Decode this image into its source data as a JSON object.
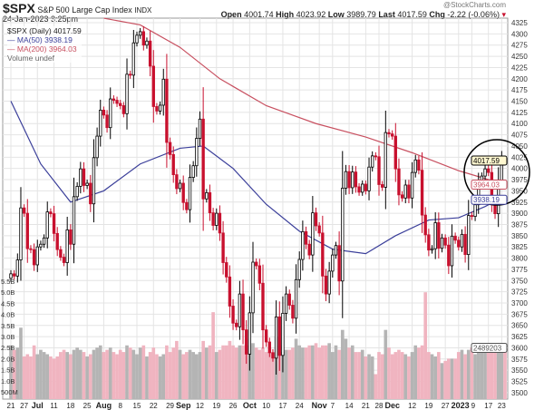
{
  "header": {
    "symbol": "$SPX",
    "name": "S&P 500 Large Cap Index",
    "exchange": "INDX",
    "datetime": "24-Jan-2023 3:25pm",
    "watermark": "@StockCharts.com",
    "open_label": "Open",
    "open": "4001.74",
    "high_label": "High",
    "high": "4023.92",
    "low_label": "Low",
    "low": "3989.79",
    "last_label": "Last",
    "last": "4017.59",
    "chg_label": "Chg",
    "chg": "-2.22 (-0.06%)"
  },
  "legend": {
    "price": "$SPX (Daily) 4017.59",
    "ma50": "MA(50) 3938.19",
    "ma200": "MA(200) 3964.03",
    "volume": "Volume undef"
  },
  "colors": {
    "up": "#000000",
    "down": "#c8102e",
    "ma50": "#3b3f9a",
    "ma200": "#c85060",
    "vol_up": "#b4b4b4",
    "vol_down": "#f0b4c0",
    "grid": "#e4e4e4"
  },
  "chart_data": {
    "type": "candlestick",
    "ylim": [
      3487,
      4340
    ],
    "yticks": [
      4325,
      4300,
      4275,
      4250,
      4225,
      4200,
      4175,
      4150,
      4125,
      4100,
      4075,
      4050,
      4025,
      4000,
      3975,
      3950,
      3925,
      3900,
      3875,
      3850,
      3825,
      3800,
      3775,
      3750,
      3725,
      3700,
      3675,
      3650,
      3625,
      3600,
      3575,
      3550,
      3525,
      3500
    ],
    "vol_ticks": [
      "5.5B",
      "5.0B",
      "4.5B",
      "4.0B",
      "3.5B",
      "3.0B",
      "2.5B",
      "2.0B",
      "1.5B",
      "1.0B",
      "500M"
    ],
    "months": [
      {
        "m": "2022-06",
        "days": [
          21,
          22,
          23,
          24,
          27,
          28,
          29,
          30
        ],
        "close": [
          3765,
          3760,
          3796,
          3912,
          3900,
          3821,
          3819,
          3785
        ],
        "vol": [
          2.6,
          2.4,
          2.5,
          3.4,
          2.1,
          2.2,
          2.1,
          2.6
        ]
      },
      {
        "m": "2022-07",
        "days": [
          1,
          5,
          6,
          7,
          8,
          11,
          12,
          13,
          14,
          15,
          18,
          19,
          20,
          21,
          22,
          25,
          26,
          27,
          28,
          29
        ],
        "close": [
          3825,
          3831,
          3845,
          3903,
          3899,
          3855,
          3819,
          3802,
          3790,
          3863,
          3831,
          3937,
          3960,
          3999,
          3962,
          3967,
          3921,
          4024,
          4072,
          4130
        ],
        "vol": [
          2.2,
          2.4,
          2.3,
          2.2,
          2.1,
          2.0,
          2.1,
          2.3,
          2.4,
          2.3,
          2.2,
          2.4,
          2.5,
          2.4,
          2.3,
          2.1,
          2.2,
          2.4,
          2.5,
          2.6
        ]
      },
      {
        "m": "2022-08",
        "days": [
          1,
          2,
          3,
          4,
          5,
          8,
          9,
          10,
          11,
          12,
          15,
          16,
          17,
          18,
          19,
          22,
          23,
          24,
          25,
          26,
          29,
          30,
          31
        ],
        "close": [
          4119,
          4091,
          4155,
          4152,
          4145,
          4140,
          4122,
          4210,
          4208,
          4280,
          4297,
          4305,
          4275,
          4284,
          4228,
          4138,
          4128,
          4141,
          4199,
          4058,
          4031,
          3986,
          3955
        ],
        "vol": [
          2.3,
          2.4,
          2.5,
          2.3,
          2.2,
          2.4,
          2.3,
          2.6,
          2.5,
          2.4,
          2.2,
          2.5,
          2.6,
          2.1,
          2.3,
          2.5,
          2.2,
          2.1,
          2.2,
          2.6,
          2.3,
          2.5,
          2.8
        ]
      },
      {
        "m": "2022-09",
        "days": [
          1,
          2,
          6,
          7,
          8,
          9,
          12,
          13,
          14,
          15,
          16,
          19,
          20,
          21,
          22,
          23,
          26,
          27,
          28,
          29,
          30
        ],
        "close": [
          3967,
          3924,
          3908,
          3980,
          4006,
          4067,
          4110,
          3932,
          3946,
          3901,
          3873,
          3900,
          3856,
          3790,
          3758,
          3693,
          3655,
          3647,
          3720,
          3640,
          3586
        ],
        "vol": [
          2.4,
          2.2,
          2.3,
          2.4,
          2.3,
          2.2,
          2.3,
          2.8,
          2.5,
          2.6,
          4.1,
          2.3,
          2.4,
          2.6,
          2.6,
          2.8,
          2.6,
          2.5,
          2.6,
          2.6,
          2.9
        ]
      },
      {
        "m": "2022-10",
        "days": [
          3,
          4,
          5,
          6,
          7,
          10,
          11,
          12,
          13,
          14,
          17,
          18,
          19,
          20,
          21,
          24,
          25,
          26,
          27,
          28,
          31
        ],
        "close": [
          3678,
          3791,
          3783,
          3744,
          3640,
          3613,
          3589,
          3577,
          3669,
          3583,
          3677,
          3720,
          3695,
          3666,
          3752,
          3797,
          3859,
          3831,
          3807,
          3901,
          3872
        ],
        "vol": [
          2.6,
          2.7,
          2.5,
          2.4,
          2.5,
          2.3,
          2.5,
          2.3,
          3.0,
          2.6,
          2.3,
          2.4,
          2.4,
          2.5,
          2.9,
          2.6,
          2.5,
          2.5,
          2.6,
          2.6,
          2.7
        ]
      },
      {
        "m": "2022-11",
        "days": [
          1,
          2,
          3,
          4,
          7,
          8,
          9,
          10,
          11,
          14,
          15,
          16,
          17,
          18,
          21,
          22,
          23,
          25,
          28,
          29,
          30
        ],
        "close": [
          3856,
          3760,
          3720,
          3771,
          3807,
          3828,
          3749,
          3956,
          3993,
          3957,
          3992,
          3959,
          3947,
          3965,
          3950,
          4003,
          4028,
          4026,
          3964,
          3958,
          4080
        ],
        "vol": [
          2.5,
          2.6,
          2.6,
          2.7,
          2.3,
          2.6,
          2.4,
          3.3,
          2.9,
          2.5,
          2.6,
          2.3,
          2.3,
          2.4,
          2.1,
          2.2,
          2.1,
          1.3,
          2.3,
          2.2,
          3.3
        ]
      },
      {
        "m": "2022-12",
        "days": [
          1,
          2,
          5,
          6,
          7,
          8,
          9,
          12,
          13,
          14,
          15,
          16,
          19,
          20,
          21,
          22,
          23,
          27,
          28,
          29,
          30
        ],
        "close": [
          4077,
          4072,
          3999,
          3941,
          3934,
          3963,
          3934,
          3991,
          4019,
          3996,
          3896,
          3852,
          3818,
          3821,
          3879,
          3822,
          3845,
          3829,
          3783,
          3849,
          3840
        ],
        "vol": [
          2.5,
          2.2,
          2.3,
          2.4,
          2.3,
          2.2,
          2.1,
          2.3,
          2.6,
          2.5,
          2.6,
          5.0,
          2.3,
          2.2,
          2.1,
          2.3,
          1.8,
          1.9,
          2.0,
          2.0,
          2.0
        ]
      },
      {
        "m": "2023-01",
        "days": [
          3,
          4,
          5,
          6,
          9,
          10,
          11,
          12,
          13,
          17,
          18,
          19,
          20,
          23,
          24
        ],
        "close": [
          3825,
          3853,
          3808,
          3895,
          3893,
          3919,
          3970,
          3983,
          3999,
          3991,
          3928,
          3899,
          3973,
          4020,
          4018
        ],
        "vol": [
          2.3,
          2.4,
          2.2,
          2.4,
          2.5,
          2.2,
          2.3,
          2.5,
          2.4,
          2.5,
          2.5,
          2.4,
          2.5,
          2.5,
          2.5
        ]
      }
    ],
    "ma50": [
      [
        "2022-06-21",
        4150
      ],
      [
        "2022-07-05",
        4010
      ],
      [
        "2022-07-18",
        3925
      ],
      [
        "2022-08-01",
        3950
      ],
      [
        "2022-08-16",
        4010
      ],
      [
        "2022-09-01",
        4045
      ],
      [
        "2022-09-13",
        4050
      ],
      [
        "2022-09-26",
        4000
      ],
      [
        "2022-10-10",
        3920
      ],
      [
        "2022-10-24",
        3860
      ],
      [
        "2022-11-07",
        3820
      ],
      [
        "2022-11-21",
        3810
      ],
      [
        "2022-12-05",
        3850
      ],
      [
        "2022-12-19",
        3885
      ],
      [
        "2023-01-03",
        3890
      ],
      [
        "2023-01-13",
        3915
      ],
      [
        "2023-01-24",
        3938.19
      ]
    ],
    "ma200": [
      [
        "2022-08-01",
        4335
      ],
      [
        "2022-08-16",
        4320
      ],
      [
        "2022-09-01",
        4270
      ],
      [
        "2022-09-20",
        4200
      ],
      [
        "2022-10-10",
        4140
      ],
      [
        "2022-10-31",
        4100
      ],
      [
        "2022-11-21",
        4070
      ],
      [
        "2022-12-12",
        4035
      ],
      [
        "2023-01-03",
        3995
      ],
      [
        "2023-01-24",
        3964.03
      ]
    ],
    "xticks": [
      [
        "2022-06-21",
        "21",
        false
      ],
      [
        "2022-06-27",
        "27",
        false
      ],
      [
        "2022-07-01",
        "Jul",
        true
      ],
      [
        "2022-07-11",
        "11",
        false
      ],
      [
        "2022-07-18",
        "18",
        false
      ],
      [
        "2022-07-25",
        "25",
        false
      ],
      [
        "2022-08-01",
        "Aug",
        true
      ],
      [
        "2022-08-08",
        "8",
        false
      ],
      [
        "2022-08-15",
        "15",
        false
      ],
      [
        "2022-08-22",
        "22",
        false
      ],
      [
        "2022-08-29",
        "29",
        false
      ],
      [
        "2022-09-01",
        "Sep",
        true
      ],
      [
        "2022-09-12",
        "12",
        false
      ],
      [
        "2022-09-19",
        "19",
        false
      ],
      [
        "2022-09-26",
        "26",
        false
      ],
      [
        "2022-10-03",
        "Oct",
        true
      ],
      [
        "2022-10-10",
        "10",
        false
      ],
      [
        "2022-10-17",
        "17",
        false
      ],
      [
        "2022-10-24",
        "24",
        false
      ],
      [
        "2022-11-01",
        "Nov",
        true
      ],
      [
        "2022-11-07",
        "7",
        false
      ],
      [
        "2022-11-14",
        "14",
        false
      ],
      [
        "2022-11-21",
        "21",
        false
      ],
      [
        "2022-11-28",
        "28",
        false
      ],
      [
        "2022-12-01",
        "Dec",
        true
      ],
      [
        "2022-12-12",
        "12",
        false
      ],
      [
        "2022-12-19",
        "19",
        false
      ],
      [
        "2022-12-27",
        "27",
        false
      ],
      [
        "2023-01-03",
        "2023",
        true
      ],
      [
        "2023-01-09",
        "9",
        false
      ],
      [
        "2023-01-17",
        "17",
        false
      ],
      [
        "2023-01-23",
        "23",
        false
      ]
    ],
    "right_labels": {
      "last": "4017.59",
      "ma200": "3964.03",
      "ma50": "3938.19",
      "volume": "2489203"
    }
  }
}
